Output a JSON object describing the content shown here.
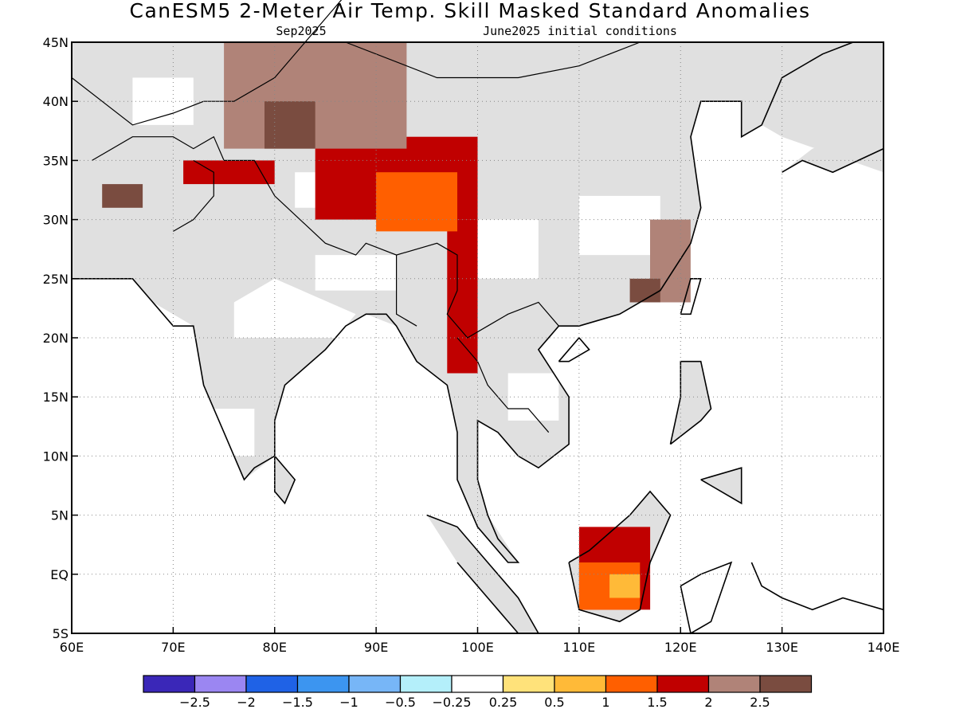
{
  "title": "CanESM5 2-Meter Air Temp. Skill Masked Standard Anomalies",
  "valid_month": "Sep2025",
  "init_label": "June2025 initial conditions",
  "chart_data": {
    "type": "heatmap",
    "title": "CanESM5 2-Meter Air Temp. Skill Masked Standard Anomalies",
    "subtitle_left": "Sep2025",
    "subtitle_right": "June2025 initial conditions",
    "x_range": [
      60,
      140
    ],
    "y_range": [
      -5,
      45
    ],
    "x_ticks": [
      "60E",
      "70E",
      "80E",
      "90E",
      "100E",
      "110E",
      "120E",
      "130E",
      "140E"
    ],
    "y_ticks": [
      "5S",
      "EQ",
      "5N",
      "10N",
      "15N",
      "20N",
      "25N",
      "30N",
      "35N",
      "40N",
      "45N"
    ],
    "grid": true,
    "colorbar": {
      "labels": [
        "-2.5",
        "-2",
        "-1.5",
        "-1",
        "-0.5",
        "-0.25",
        "0.25",
        "0.5",
        "1",
        "1.5",
        "2",
        "2.5"
      ],
      "colors": [
        "#3a27b8",
        "#9b86f2",
        "#1f62e6",
        "#3c95f0",
        "#77b6f7",
        "#b4effa",
        "#ffffff",
        "#ffe27a",
        "#ffba38",
        "#ff5f00",
        "#c00000",
        "#b08378",
        "#7a4c40"
      ]
    },
    "mask_color": "#e0e0e0",
    "regions": [
      {
        "category": "1.5 to 2",
        "lon": [
          84,
          100
        ],
        "lat": [
          30,
          37
        ]
      },
      {
        "category": "1.5 to 2",
        "lon": [
          97,
          100
        ],
        "lat": [
          17,
          30
        ]
      },
      {
        "category": "1.5 to 2",
        "lon": [
          71,
          80
        ],
        "lat": [
          33,
          35
        ]
      },
      {
        "category": "1.5 to 2",
        "lon": [
          110,
          117
        ],
        "lat": [
          -3,
          4
        ]
      },
      {
        "category": "1 to 1.5",
        "lon": [
          90,
          98
        ],
        "lat": [
          29,
          34
        ]
      },
      {
        "category": "1 to 1.5",
        "lon": [
          110,
          116
        ],
        "lat": [
          -3,
          1
        ]
      },
      {
        "category": "0.5 to 1",
        "lon": [
          113,
          116
        ],
        "lat": [
          -2,
          0
        ]
      },
      {
        "category": "2 to 2.5",
        "lon": [
          75,
          93
        ],
        "lat": [
          36,
          45
        ]
      },
      {
        "category": "2 to 2.5",
        "lon": [
          117,
          121
        ],
        "lat": [
          23,
          30
        ]
      },
      {
        "category": "> 2.5",
        "lon": [
          79,
          84
        ],
        "lat": [
          36,
          40
        ]
      },
      {
        "category": "> 2.5",
        "lon": [
          63,
          67
        ],
        "lat": [
          31,
          33
        ]
      },
      {
        "category": "> 2.5",
        "lon": [
          115,
          118
        ],
        "lat": [
          23,
          25
        ]
      }
    ]
  }
}
